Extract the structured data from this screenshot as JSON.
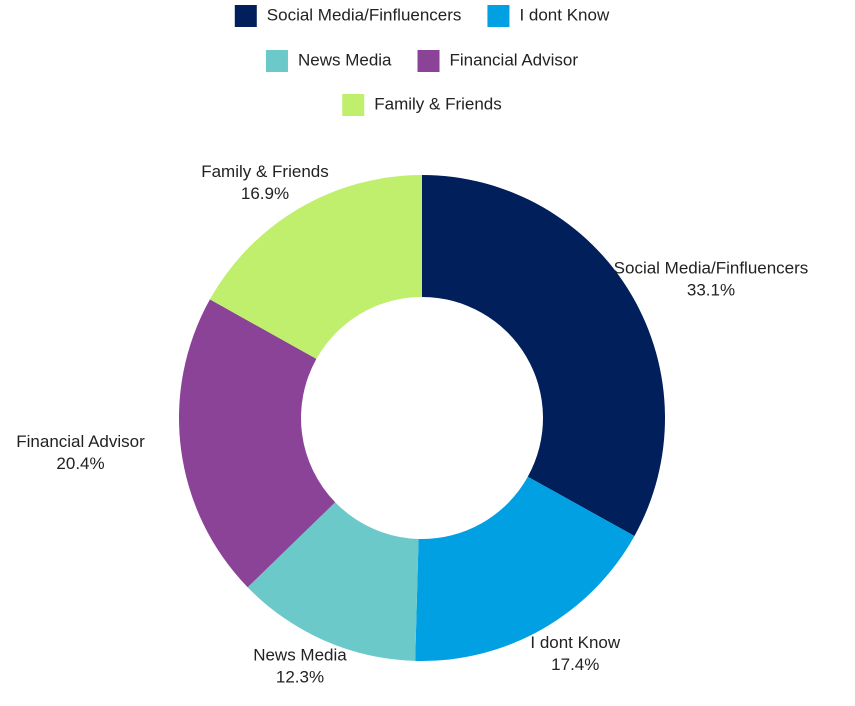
{
  "chart_data": {
    "type": "donut",
    "categories": [
      "Social Media/Finfluencers",
      "I dont Know",
      "News Media",
      "Financial Advisor",
      "Family & Friends"
    ],
    "values": [
      33.1,
      17.4,
      12.3,
      20.4,
      16.9
    ],
    "value_labels": [
      "33.1%",
      "17.4%",
      "12.3%",
      "20.4%",
      "16.9%"
    ],
    "colors": [
      "#001f5b",
      "#00a0e3",
      "#6cc9c9",
      "#8b4398",
      "#c0ef6e"
    ],
    "legend": "top"
  }
}
